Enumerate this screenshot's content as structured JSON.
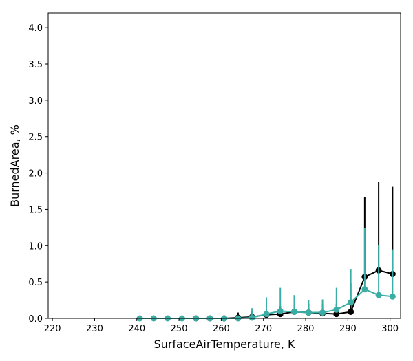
{
  "chart_data": {
    "type": "line",
    "xlabel": "SurfaceAirTemperature,  K",
    "ylabel": "BurnedArea,  %",
    "xlim": [
      219,
      302.5
    ],
    "ylim": [
      0,
      4.2
    ],
    "xticks": [
      220,
      230,
      240,
      250,
      260,
      270,
      280,
      290,
      300
    ],
    "yticks": [
      0.0,
      0.5,
      1.0,
      1.5,
      2.0,
      2.5,
      3.0,
      3.5,
      4.0
    ],
    "xtick_labels": [
      "220",
      "230",
      "240",
      "250",
      "260",
      "270",
      "280",
      "290",
      "300"
    ],
    "ytick_labels": [
      "0.0",
      "0.5",
      "1.0",
      "1.5",
      "2.0",
      "2.5",
      "3.0",
      "3.5",
      "4.0"
    ],
    "grid": false,
    "legend": "none",
    "series": [
      {
        "color": "#000000",
        "x": [
          254.0,
          257.3,
          260.7,
          264.0,
          267.3,
          270.7,
          274.0,
          277.3,
          280.7,
          284.0,
          287.3,
          290.7,
          294.0,
          297.3,
          300.6
        ],
        "y": [
          0.0,
          0.0,
          0.0,
          0.01,
          0.02,
          0.05,
          0.06,
          0.09,
          0.08,
          0.07,
          0.06,
          0.09,
          0.57,
          0.66,
          0.61
        ],
        "err_upper": [
          0.01,
          0.01,
          0.01,
          0.08,
          0.1,
          0.14,
          0.17,
          0.19,
          0.2,
          0.2,
          0.2,
          0.48,
          1.67,
          1.88,
          1.81
        ]
      },
      {
        "color": "#3aada5",
        "x": [
          240.7,
          244.0,
          247.3,
          250.7,
          254.0,
          257.3,
          260.7,
          264.0,
          267.3,
          270.7,
          274.0,
          277.3,
          280.7,
          284.0,
          287.3,
          290.7,
          294.0,
          297.3,
          300.6
        ],
        "y": [
          0.0,
          0.0,
          0.0,
          0.0,
          0.0,
          0.0,
          0.0,
          0.0,
          0.01,
          0.06,
          0.1,
          0.09,
          0.08,
          0.08,
          0.12,
          0.22,
          0.4,
          0.32,
          0.3
        ],
        "err_upper": [
          0.0,
          0.0,
          0.0,
          0.0,
          0.0,
          0.0,
          0.01,
          0.03,
          0.14,
          0.29,
          0.42,
          0.32,
          0.25,
          0.26,
          0.42,
          0.68,
          1.24,
          1.01,
          0.95
        ]
      }
    ]
  }
}
